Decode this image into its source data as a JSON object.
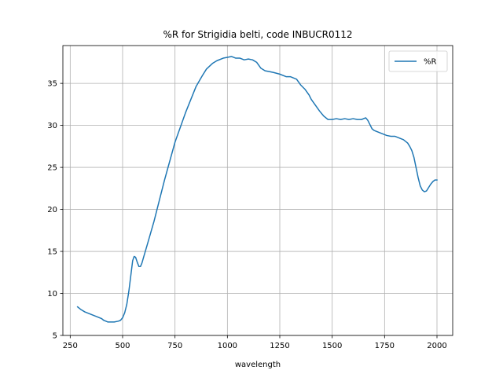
{
  "chart_data": {
    "type": "line",
    "title": "%R for Strigidia belti, code INBUCR0112",
    "xlabel": "wavelength",
    "ylabel": "",
    "xlim": [
      215,
      2075
    ],
    "ylim": [
      5,
      39.5
    ],
    "xticks": [
      250,
      500,
      750,
      1000,
      1250,
      1500,
      1750,
      2000
    ],
    "yticks": [
      5,
      10,
      15,
      20,
      25,
      30,
      35
    ],
    "grid": true,
    "legend": {
      "position": "top-right",
      "entries": [
        "%R"
      ]
    },
    "colors": {
      "line": "#1f77b4",
      "grid": "#b0b0b0",
      "axes": "#000000"
    },
    "series": [
      {
        "name": "%R",
        "x": [
          285,
          300,
          320,
          340,
          360,
          380,
          400,
          410,
          420,
          430,
          440,
          460,
          480,
          490,
          500,
          510,
          520,
          530,
          540,
          548,
          555,
          562,
          570,
          578,
          585,
          592,
          600,
          620,
          650,
          700,
          750,
          800,
          850,
          880,
          900,
          930,
          950,
          980,
          1000,
          1020,
          1040,
          1060,
          1080,
          1100,
          1120,
          1140,
          1160,
          1180,
          1200,
          1220,
          1250,
          1280,
          1300,
          1330,
          1350,
          1370,
          1390,
          1400,
          1420,
          1440,
          1460,
          1480,
          1500,
          1520,
          1540,
          1560,
          1580,
          1600,
          1620,
          1640,
          1660,
          1670,
          1680,
          1690,
          1700,
          1720,
          1740,
          1760,
          1780,
          1800,
          1820,
          1840,
          1860,
          1870,
          1880,
          1890,
          1900,
          1910,
          1920,
          1930,
          1940,
          1950,
          1960,
          1970,
          1980,
          1990,
          2000
        ],
        "y": [
          8.4,
          8.1,
          7.8,
          7.6,
          7.4,
          7.2,
          7.0,
          6.8,
          6.7,
          6.6,
          6.6,
          6.6,
          6.7,
          6.8,
          7.1,
          7.7,
          8.7,
          10.3,
          12.3,
          13.9,
          14.4,
          14.3,
          13.7,
          13.2,
          13.2,
          13.6,
          14.3,
          16.0,
          18.6,
          23.5,
          28.0,
          31.5,
          34.6,
          35.9,
          36.7,
          37.4,
          37.7,
          38.0,
          38.1,
          38.2,
          38.0,
          38.0,
          37.8,
          37.9,
          37.8,
          37.5,
          36.8,
          36.5,
          36.4,
          36.3,
          36.1,
          35.8,
          35.8,
          35.5,
          34.8,
          34.3,
          33.6,
          33.1,
          32.4,
          31.7,
          31.1,
          30.7,
          30.7,
          30.8,
          30.7,
          30.8,
          30.7,
          30.8,
          30.7,
          30.7,
          30.9,
          30.6,
          30.1,
          29.6,
          29.4,
          29.2,
          29.0,
          28.8,
          28.7,
          28.7,
          28.5,
          28.3,
          27.9,
          27.5,
          27.0,
          26.2,
          25.0,
          23.8,
          22.8,
          22.3,
          22.1,
          22.2,
          22.6,
          23.0,
          23.3,
          23.5,
          23.5
        ]
      }
    ]
  }
}
